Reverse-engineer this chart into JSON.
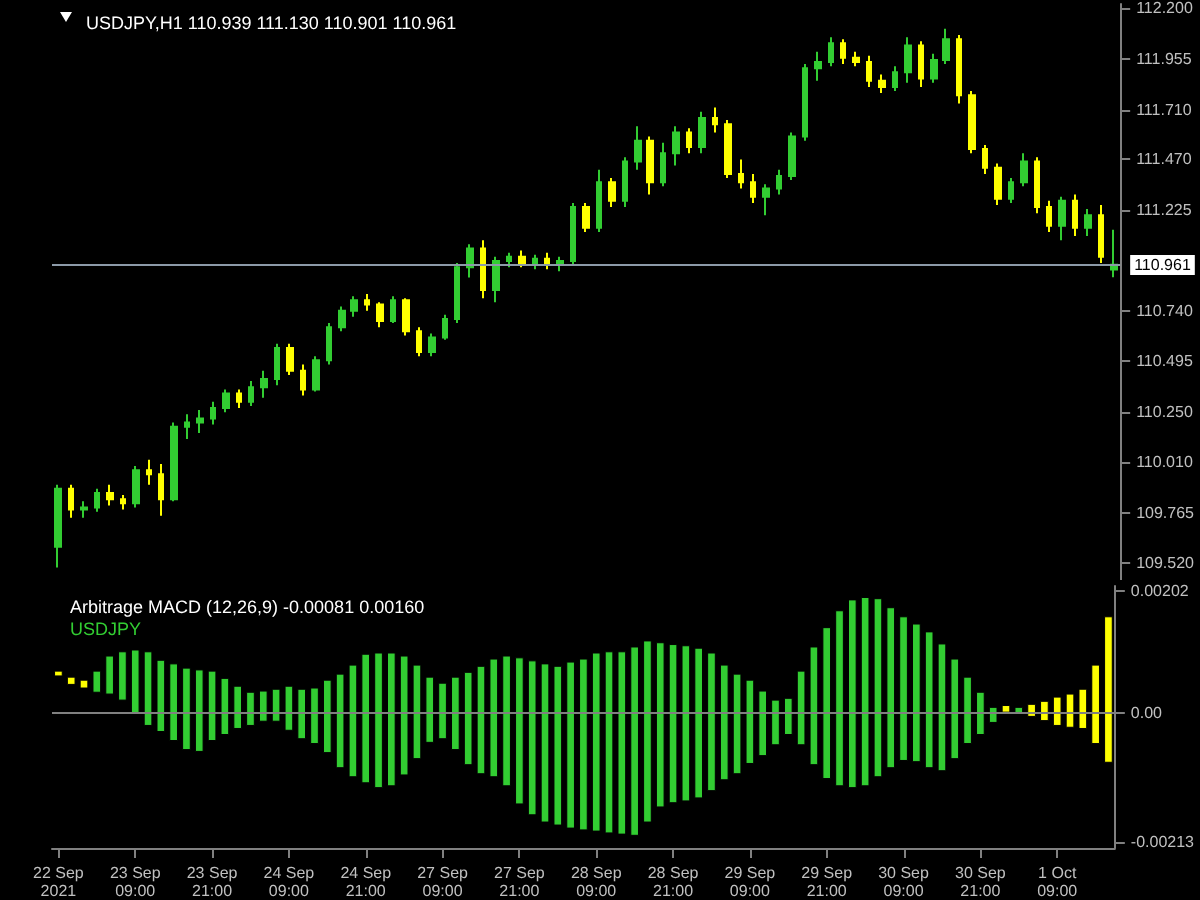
{
  "chart_data": [
    {
      "type": "candlestick",
      "title": "USDJPY,H1 110.939 111.130 110.901 110.961",
      "categories": [
        null,
        null,
        null,
        null,
        null,
        null,
        null,
        null,
        null,
        null,
        null,
        null,
        null,
        null,
        null,
        null,
        null,
        null,
        null,
        null,
        null,
        null,
        null,
        null,
        null,
        null,
        null,
        null,
        null,
        null,
        null,
        null,
        null,
        null,
        null,
        null,
        null,
        null,
        null,
        null,
        null,
        null,
        null,
        null,
        null,
        null,
        null,
        null,
        null,
        null,
        null,
        null,
        null,
        null,
        null,
        null,
        null,
        null,
        null,
        null,
        null,
        null,
        null,
        null,
        null,
        null,
        null,
        null,
        null,
        null,
        null,
        null,
        null,
        null,
        null,
        null,
        null,
        null,
        null,
        null,
        null,
        null,
        null
      ],
      "ohlc": [
        [
          109.6,
          109.9,
          109.5,
          109.88
        ],
        [
          109.88,
          109.9,
          109.74,
          109.78
        ],
        [
          109.78,
          109.82,
          109.74,
          109.79
        ],
        [
          109.79,
          109.88,
          109.77,
          109.86
        ],
        [
          109.86,
          109.9,
          109.8,
          109.83
        ],
        [
          109.83,
          109.85,
          109.78,
          109.81
        ],
        [
          109.81,
          109.99,
          109.79,
          109.97
        ],
        [
          109.97,
          110.02,
          109.9,
          109.95
        ],
        [
          109.95,
          110.0,
          109.75,
          109.83
        ],
        [
          109.83,
          110.2,
          109.82,
          110.18
        ],
        [
          110.18,
          110.24,
          110.12,
          110.2
        ],
        [
          110.2,
          110.26,
          110.15,
          110.22
        ],
        [
          110.22,
          110.3,
          110.19,
          110.27
        ],
        [
          110.27,
          110.36,
          110.25,
          110.34
        ],
        [
          110.34,
          110.36,
          110.27,
          110.3
        ],
        [
          110.3,
          110.4,
          110.28,
          110.37
        ],
        [
          110.37,
          110.45,
          110.32,
          110.41
        ],
        [
          110.41,
          110.58,
          110.38,
          110.56
        ],
        [
          110.56,
          110.58,
          110.43,
          110.45
        ],
        [
          110.45,
          110.48,
          110.33,
          110.36
        ],
        [
          110.36,
          110.52,
          110.35,
          110.5
        ],
        [
          110.5,
          110.68,
          110.48,
          110.66
        ],
        [
          110.66,
          110.76,
          110.64,
          110.74
        ],
        [
          110.74,
          110.81,
          110.71,
          110.79
        ],
        [
          110.79,
          110.82,
          110.74,
          110.77
        ],
        [
          110.77,
          110.78,
          110.66,
          110.69
        ],
        [
          110.69,
          110.81,
          110.68,
          110.79
        ],
        [
          110.79,
          110.8,
          110.62,
          110.64
        ],
        [
          110.64,
          110.66,
          110.52,
          110.54
        ],
        [
          110.54,
          110.63,
          110.52,
          110.61
        ],
        [
          110.61,
          110.72,
          110.6,
          110.7
        ],
        [
          110.7,
          110.97,
          110.68,
          110.95
        ],
        [
          110.95,
          111.06,
          110.9,
          111.04
        ],
        [
          111.04,
          111.08,
          110.8,
          110.84
        ],
        [
          110.84,
          111.0,
          110.78,
          110.98
        ],
        [
          110.98,
          111.02,
          110.95,
          111.0
        ],
        [
          111.0,
          111.03,
          110.95,
          110.97
        ],
        [
          110.97,
          111.01,
          110.94,
          110.99
        ],
        [
          110.99,
          111.02,
          110.94,
          110.96
        ],
        [
          110.96,
          111.0,
          110.93,
          110.98
        ],
        [
          110.98,
          111.26,
          110.96,
          111.24
        ],
        [
          111.24,
          111.26,
          111.12,
          111.14
        ],
        [
          111.14,
          111.42,
          111.12,
          111.36
        ],
        [
          111.36,
          111.38,
          111.24,
          111.27
        ],
        [
          111.27,
          111.48,
          111.24,
          111.46
        ],
        [
          111.46,
          111.63,
          111.42,
          111.56
        ],
        [
          111.56,
          111.58,
          111.3,
          111.36
        ],
        [
          111.36,
          111.55,
          111.34,
          111.5
        ],
        [
          111.5,
          111.63,
          111.44,
          111.6
        ],
        [
          111.6,
          111.62,
          111.5,
          111.53
        ],
        [
          111.53,
          111.7,
          111.5,
          111.67
        ],
        [
          111.67,
          111.72,
          111.6,
          111.64
        ],
        [
          111.64,
          111.66,
          111.38,
          111.4
        ],
        [
          111.4,
          111.47,
          111.33,
          111.36
        ],
        [
          111.36,
          111.4,
          111.26,
          111.29
        ],
        [
          111.29,
          111.35,
          111.2,
          111.33
        ],
        [
          111.33,
          111.42,
          111.3,
          111.39
        ],
        [
          111.39,
          111.6,
          111.37,
          111.58
        ],
        [
          111.58,
          111.93,
          111.56,
          111.91
        ],
        [
          111.91,
          111.99,
          111.85,
          111.94
        ],
        [
          111.94,
          112.06,
          111.92,
          112.03
        ],
        [
          112.03,
          112.05,
          111.93,
          111.96
        ],
        [
          111.96,
          111.99,
          111.92,
          111.94
        ],
        [
          111.94,
          111.97,
          111.82,
          111.85
        ],
        [
          111.85,
          111.88,
          111.79,
          111.82
        ],
        [
          111.82,
          111.92,
          111.8,
          111.89
        ],
        [
          111.89,
          112.06,
          111.84,
          112.02
        ],
        [
          112.02,
          112.04,
          111.82,
          111.86
        ],
        [
          111.86,
          111.98,
          111.84,
          111.95
        ],
        [
          111.95,
          112.1,
          111.93,
          112.05
        ],
        [
          112.05,
          112.07,
          111.74,
          111.78
        ],
        [
          111.78,
          111.8,
          111.5,
          111.52
        ],
        [
          111.52,
          111.54,
          111.4,
          111.43
        ],
        [
          111.43,
          111.45,
          111.25,
          111.28
        ],
        [
          111.28,
          111.38,
          111.26,
          111.36
        ],
        [
          111.36,
          111.5,
          111.34,
          111.46
        ],
        [
          111.46,
          111.48,
          111.21,
          111.24
        ],
        [
          111.24,
          111.27,
          111.12,
          111.15
        ],
        [
          111.15,
          111.29,
          111.08,
          111.27
        ],
        [
          111.27,
          111.3,
          111.1,
          111.14
        ],
        [
          111.14,
          111.23,
          111.1,
          111.2
        ],
        [
          111.2,
          111.25,
          110.97,
          111.0
        ],
        [
          110.939,
          111.13,
          110.901,
          110.961
        ]
      ],
      "colors": [
        "#32cd32",
        "#ffff00",
        "#32cd32",
        "#32cd32",
        "#ffff00",
        "#ffff00",
        "#32cd32",
        "#ffff00",
        "#ffff00",
        "#32cd32",
        "#32cd32",
        "#32cd32",
        "#32cd32",
        "#32cd32",
        "#ffff00",
        "#32cd32",
        "#32cd32",
        "#32cd32",
        "#ffff00",
        "#ffff00",
        "#32cd32",
        "#32cd32",
        "#32cd32",
        "#32cd32",
        "#ffff00",
        "#ffff00",
        "#32cd32",
        "#ffff00",
        "#ffff00",
        "#32cd32",
        "#32cd32",
        "#32cd32",
        "#32cd32",
        "#ffff00",
        "#32cd32",
        "#32cd32",
        "#ffff00",
        "#32cd32",
        "#ffff00",
        "#32cd32",
        "#32cd32",
        "#ffff00",
        "#32cd32",
        "#ffff00",
        "#32cd32",
        "#32cd32",
        "#ffff00",
        "#32cd32",
        "#32cd32",
        "#ffff00",
        "#32cd32",
        "#ffff00",
        "#ffff00",
        "#ffff00",
        "#ffff00",
        "#32cd32",
        "#32cd32",
        "#32cd32",
        "#32cd32",
        "#32cd32",
        "#32cd32",
        "#ffff00",
        "#ffff00",
        "#ffff00",
        "#ffff00",
        "#32cd32",
        "#32cd32",
        "#ffff00",
        "#32cd32",
        "#32cd32",
        "#ffff00",
        "#ffff00",
        "#ffff00",
        "#ffff00",
        "#32cd32",
        "#32cd32",
        "#ffff00",
        "#ffff00",
        "#32cd32",
        "#ffff00",
        "#32cd32",
        "#ffff00",
        "#32cd32"
      ],
      "ylim": [
        109.44,
        112.22
      ],
      "yticks": [
        {
          "value": 109.52,
          "label": "109.520"
        },
        {
          "value": 109.765,
          "label": "109.765"
        },
        {
          "value": 110.01,
          "label": "110.010"
        },
        {
          "value": 110.25,
          "label": "110.250"
        },
        {
          "value": 110.495,
          "label": "110.495"
        },
        {
          "value": 110.74,
          "label": "110.740"
        },
        {
          "value": 111.225,
          "label": "111.225"
        },
        {
          "value": 111.47,
          "label": "111.470"
        },
        {
          "value": 111.71,
          "label": "111.710"
        },
        {
          "value": 111.955,
          "label": "111.955"
        },
        {
          "value": 112.2,
          "label": "112.200"
        }
      ],
      "ref_lines": [
        {
          "axis": "y",
          "value": 110.961,
          "label": "110.961",
          "color": "#8c9aa8"
        }
      ],
      "tick_labels": "y"
    },
    {
      "type": "bar",
      "title": "Arbitrage MACD (12,26,9) -0.00081 0.00160",
      "subtitle": "USDJPY",
      "categories": [
        "22 Sep 2021",
        null,
        null,
        null,
        null,
        null,
        "23 Sep 09:00",
        null,
        null,
        null,
        null,
        null,
        "23 Sep 21:00",
        null,
        null,
        null,
        null,
        null,
        "24 Sep 09:00",
        null,
        null,
        null,
        null,
        null,
        "24 Sep 21:00",
        null,
        null,
        null,
        null,
        null,
        "27 Sep 09:00",
        null,
        null,
        null,
        null,
        null,
        "27 Sep 21:00",
        null,
        null,
        null,
        null,
        null,
        "28 Sep 09:00",
        null,
        null,
        null,
        null,
        null,
        "28 Sep 21:00",
        null,
        null,
        null,
        null,
        null,
        "29 Sep 09:00",
        null,
        null,
        null,
        null,
        null,
        "29 Sep 21:00",
        null,
        null,
        null,
        null,
        null,
        "30 Sep 09:00",
        null,
        null,
        null,
        null,
        null,
        "30 Sep 21:00",
        null,
        null,
        null,
        null,
        null,
        "1 Oct 09:00",
        null,
        null,
        null,
        null
      ],
      "base": [
        0.00062,
        0.00048,
        0.00042,
        0.00035,
        0.00032,
        0.00022,
        0,
        -0.0002,
        -0.0003,
        -0.00045,
        -0.0006,
        -0.00063,
        -0.00045,
        -0.00035,
        -0.00025,
        -0.0002,
        -0.00013,
        -0.00013,
        -0.00028,
        -0.00042,
        -0.0005,
        -0.00065,
        -0.0009,
        -0.00105,
        -0.00115,
        -0.00123,
        -0.0012,
        -0.00102,
        -0.00075,
        -0.00048,
        -0.00042,
        -0.0006,
        -0.00085,
        -0.001,
        -0.00105,
        -0.0012,
        -0.0015,
        -0.00168,
        -0.0018,
        -0.00185,
        -0.0019,
        -0.00193,
        -0.00195,
        -0.00198,
        -0.002,
        -0.00202,
        -0.0018,
        -0.00155,
        -0.00148,
        -0.00145,
        -0.0014,
        -0.00128,
        -0.0011,
        -0.001,
        -0.00083,
        -0.0007,
        -0.00052,
        -0.00035,
        -0.00052,
        -0.00085,
        -0.00108,
        -0.0012,
        -0.00123,
        -0.0012,
        -0.00105,
        -0.0009,
        -0.00078,
        -0.0008,
        -0.0009,
        -0.00095,
        -0.00075,
        -0.0005,
        -0.00035,
        -0.00015,
        2e-05,
        0,
        -5e-05,
        -0.00012,
        -0.0002,
        -0.00023,
        -0.00025,
        -0.0005,
        -0.00081
      ],
      "values": [
        8e-05,
        0.00012,
        0.00013,
        0.00035,
        0.00063,
        0.0008,
        0.00105,
        0.00122,
        0.00118,
        0.00127,
        0.00135,
        0.00135,
        0.00115,
        0.00093,
        0.0007,
        0.00055,
        0.0005,
        0.00053,
        0.00073,
        0.00082,
        0.00092,
        0.0012,
        0.00155,
        0.00185,
        0.00213,
        0.00223,
        0.0022,
        0.00197,
        0.00155,
        0.00108,
        0.00092,
        0.0012,
        0.00153,
        0.00178,
        0.00195,
        0.00215,
        0.00242,
        0.00255,
        0.00262,
        0.00263,
        0.00275,
        0.00283,
        0.00295,
        0.003,
        0.00302,
        0.00312,
        0.003,
        0.00272,
        0.00262,
        0.00257,
        0.00248,
        0.00228,
        0.0019,
        0.00165,
        0.00138,
        0.00107,
        0.00074,
        0.0006,
        0.00122,
        0.00195,
        0.0025,
        0.0029,
        0.00311,
        0.00312,
        0.00295,
        0.00265,
        0.00238,
        0.00228,
        0.00225,
        0.0021,
        0.00165,
        0.0011,
        0.0007,
        0.00025,
        0.00011,
        0.0001,
        0.0002,
        0.00032,
        0.00047,
        0.00055,
        0.00065,
        0.0013,
        0.00241
      ],
      "colors": [
        "#ffff00",
        "#ffff00",
        "#ffff00",
        "#32cd32",
        "#32cd32",
        "#32cd32",
        "#32cd32",
        "#32cd32",
        "#32cd32",
        "#32cd32",
        "#32cd32",
        "#32cd32",
        "#32cd32",
        "#32cd32",
        "#32cd32",
        "#32cd32",
        "#32cd32",
        "#32cd32",
        "#32cd32",
        "#32cd32",
        "#32cd32",
        "#32cd32",
        "#32cd32",
        "#32cd32",
        "#32cd32",
        "#32cd32",
        "#32cd32",
        "#32cd32",
        "#32cd32",
        "#32cd32",
        "#32cd32",
        "#32cd32",
        "#32cd32",
        "#32cd32",
        "#32cd32",
        "#32cd32",
        "#32cd32",
        "#32cd32",
        "#32cd32",
        "#32cd32",
        "#32cd32",
        "#32cd32",
        "#32cd32",
        "#32cd32",
        "#32cd32",
        "#32cd32",
        "#32cd32",
        "#32cd32",
        "#32cd32",
        "#32cd32",
        "#32cd32",
        "#32cd32",
        "#32cd32",
        "#32cd32",
        "#32cd32",
        "#32cd32",
        "#32cd32",
        "#32cd32",
        "#32cd32",
        "#32cd32",
        "#32cd32",
        "#32cd32",
        "#32cd32",
        "#32cd32",
        "#32cd32",
        "#32cd32",
        "#32cd32",
        "#32cd32",
        "#32cd32",
        "#32cd32",
        "#32cd32",
        "#32cd32",
        "#32cd32",
        "#32cd32",
        "#ffff00",
        "#32cd32",
        "#ffff00",
        "#ffff00",
        "#ffff00",
        "#ffff00",
        "#ffff00",
        "#ffff00",
        "#ffff00"
      ],
      "ylim": [
        -0.00223,
        0.00211
      ],
      "yticks": [
        {
          "value": -0.00213,
          "label": "-0.00213"
        },
        {
          "value": 0,
          "label": "0.00"
        },
        {
          "value": 0.00202,
          "label": "0.00202"
        }
      ],
      "ref_lines": [
        {
          "axis": "y",
          "value": 0,
          "color": "#808080"
        }
      ]
    }
  ]
}
